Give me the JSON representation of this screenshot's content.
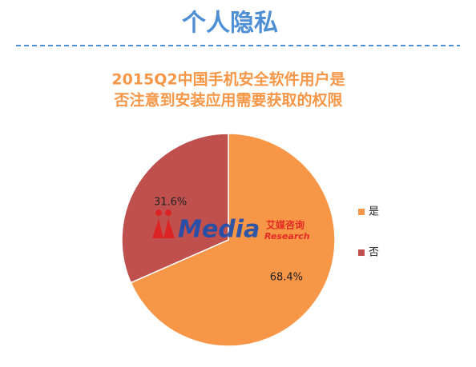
{
  "header": {
    "title": "个人隐私"
  },
  "watermark": {
    "brand": "Media",
    "cn": "艾媒咨询",
    "en": "Research"
  },
  "chart_data": {
    "type": "pie",
    "title": [
      "2015Q2中国手机安全软件用户是",
      "否注意到安装应用需要获取的权限"
    ],
    "categories": [
      "是",
      "否"
    ],
    "values": [
      68.4,
      31.6
    ],
    "value_labels": [
      "68.4%",
      "31.6%"
    ],
    "colors": [
      "#f79646",
      "#c0504d"
    ],
    "legend": "right"
  }
}
